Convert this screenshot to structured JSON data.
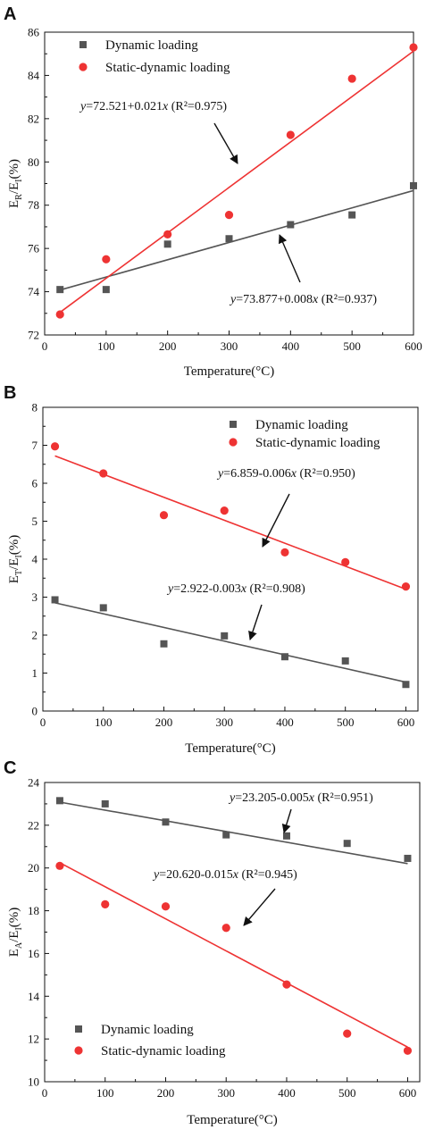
{
  "chart_data": [
    {
      "type": "scatter",
      "panel": "A",
      "xlabel": "Temperature(°C)",
      "ylabel": {
        "main": "E",
        "sub1": "R",
        "mid": "/E",
        "sub2": "I",
        "tail": "(%)"
      },
      "xlim": [
        0,
        600
      ],
      "ylim": [
        72,
        86
      ],
      "xticks": [
        0,
        100,
        200,
        300,
        400,
        500,
        600
      ],
      "yticks": [
        72,
        74,
        76,
        78,
        80,
        82,
        84,
        86
      ],
      "legend_position": "top-left",
      "series": [
        {
          "name": "Dynamic loading",
          "marker": "square",
          "color": "#555555",
          "x": [
            25,
            100,
            200,
            300,
            400,
            500,
            600
          ],
          "y": [
            74.1,
            74.1,
            76.2,
            76.45,
            77.1,
            77.55,
            78.9
          ],
          "fit": {
            "intercept": 73.877,
            "slope": 0.008,
            "label_eq": "=73.877+0.008",
            "label_r2": "(R²=0.937)"
          }
        },
        {
          "name": "Static-dynamic loading",
          "marker": "circle",
          "color": "#ee3333",
          "x": [
            25,
            100,
            200,
            300,
            400,
            500,
            600
          ],
          "y": [
            72.95,
            75.5,
            76.65,
            77.55,
            81.25,
            83.85,
            85.3
          ],
          "fit": {
            "intercept": 72.521,
            "slope": 0.021,
            "label_eq": "=72.521+0.021",
            "label_r2": "(R²=0.975)"
          }
        }
      ]
    },
    {
      "type": "scatter",
      "panel": "B",
      "xlabel": "Temperature(°C)",
      "ylabel": {
        "main": "E",
        "sub1": "T",
        "mid": "/E",
        "sub2": "I",
        "tail": "(%)"
      },
      "xlim": [
        0,
        620
      ],
      "ylim": [
        0,
        8
      ],
      "xticks": [
        0,
        100,
        200,
        300,
        400,
        500,
        600
      ],
      "yticks": [
        0,
        1,
        2,
        3,
        4,
        5,
        6,
        7,
        8
      ],
      "legend_position": "top-right",
      "series": [
        {
          "name": "Dynamic loading",
          "marker": "square",
          "color": "#555555",
          "x": [
            20,
            100,
            200,
            300,
            400,
            500,
            600
          ],
          "y": [
            2.93,
            2.72,
            1.77,
            1.98,
            1.43,
            1.32,
            0.7
          ],
          "fit": {
            "intercept": 2.922,
            "slope": -0.003,
            "x0": 20,
            "x1": 600,
            "y0": 2.85,
            "y1": 0.76,
            "label_eq": "=2.922-0.003",
            "label_r2": "(R²=0.908)"
          }
        },
        {
          "name": "Static-dynamic loading",
          "marker": "circle",
          "color": "#ee3333",
          "x": [
            20,
            100,
            200,
            300,
            400,
            500,
            600
          ],
          "y": [
            6.97,
            6.26,
            5.16,
            5.28,
            4.18,
            3.92,
            3.28
          ],
          "fit": {
            "intercept": 6.859,
            "slope": -0.006,
            "x0": 20,
            "x1": 600,
            "y0": 6.72,
            "y1": 3.21,
            "label_eq": "=6.859-0.006",
            "label_r2": "(R²=0.950)"
          }
        }
      ]
    },
    {
      "type": "scatter",
      "panel": "C",
      "xlabel": "Temperature(°C)",
      "ylabel": {
        "main": "E",
        "sub1": "A",
        "mid": "/E",
        "sub2": "I",
        "tail": "(%)"
      },
      "xlim": [
        0,
        620
      ],
      "ylim": [
        10,
        24
      ],
      "xticks": [
        0,
        100,
        200,
        300,
        400,
        500,
        600
      ],
      "yticks": [
        10,
        12,
        14,
        16,
        18,
        20,
        22,
        24
      ],
      "legend_position": "bottom-left",
      "series": [
        {
          "name": "Dynamic loading",
          "marker": "square",
          "color": "#555555",
          "x": [
            25,
            100,
            200,
            300,
            400,
            500,
            600
          ],
          "y": [
            23.15,
            23.0,
            22.15,
            21.55,
            21.5,
            21.15,
            20.45
          ],
          "fit": {
            "intercept": 23.205,
            "slope": -0.005,
            "label_eq": "=23.205-0.005",
            "label_r2": "(R²=0.951)"
          }
        },
        {
          "name": "Static-dynamic loading",
          "marker": "circle",
          "color": "#ee3333",
          "x": [
            25,
            100,
            200,
            300,
            400,
            500,
            600
          ],
          "y": [
            20.1,
            18.3,
            18.2,
            17.2,
            14.55,
            12.25,
            11.45
          ],
          "fit": {
            "intercept": 20.62,
            "slope": -0.015,
            "label_eq": "=20.620-0.015",
            "label_r2": "(R²=0.945)"
          }
        }
      ]
    }
  ],
  "eq_y": "y",
  "eq_x": "x"
}
